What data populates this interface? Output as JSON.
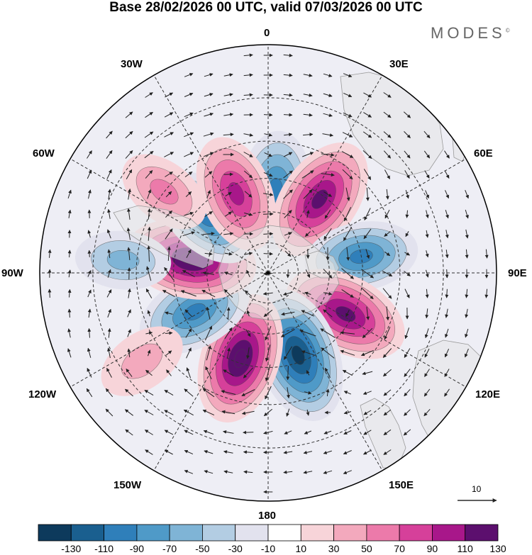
{
  "title": "Base 28/02/2026 00 UTC, valid 07/03/2026 00 UTC",
  "brand": "MODES",
  "brand_mark": "©",
  "longitude_labels": {
    "lon_0": "0",
    "lon_30e": "30E",
    "lon_60e": "60E",
    "lon_90e": "90E",
    "lon_120e": "120E",
    "lon_150e": "150E",
    "lon_180": "180",
    "lon_150w": "150W",
    "lon_120w": "120W",
    "lon_90w": "90W",
    "lon_60w": "60W",
    "lon_30w": "30W"
  },
  "vector_reference": {
    "label": "10"
  },
  "colorbar": {
    "labels": [
      "-130",
      "-110",
      "-90",
      "-70",
      "-50",
      "-30",
      "-10",
      "10",
      "30",
      "50",
      "70",
      "90",
      "110",
      "130"
    ],
    "colors": [
      "#0d3a5c",
      "#1a5f8f",
      "#2f7fba",
      "#4f9ac8",
      "#7fb4d6",
      "#b3cde3",
      "#e2e2ee",
      "#ffffff",
      "#f7d4d9",
      "#f3a9bd",
      "#ec7aaa",
      "#d6409a",
      "#a8178a",
      "#5c0f6e"
    ]
  },
  "anomaly_centers": [
    {
      "lon": 5,
      "lat": -50,
      "value": -90
    },
    {
      "lon": 35,
      "lat": -47,
      "value": 110
    },
    {
      "lon": 80,
      "lat": -45,
      "value": -80
    },
    {
      "lon": 118,
      "lat": -48,
      "value": 110
    },
    {
      "lon": 160,
      "lat": -48,
      "value": -130
    },
    {
      "lon": -162,
      "lat": -47,
      "value": 120
    },
    {
      "lon": -118,
      "lat": -50,
      "value": -90
    },
    {
      "lon": -80,
      "lat": -52,
      "value": 120
    },
    {
      "lon": -48,
      "lat": -50,
      "value": -80
    },
    {
      "lon": -22,
      "lat": -49,
      "value": 90
    },
    {
      "lon": -52,
      "lat": -30,
      "value": 40
    },
    {
      "lon": -85,
      "lat": -25,
      "value": -40
    },
    {
      "lon": -125,
      "lat": -22,
      "value": 30
    }
  ]
}
